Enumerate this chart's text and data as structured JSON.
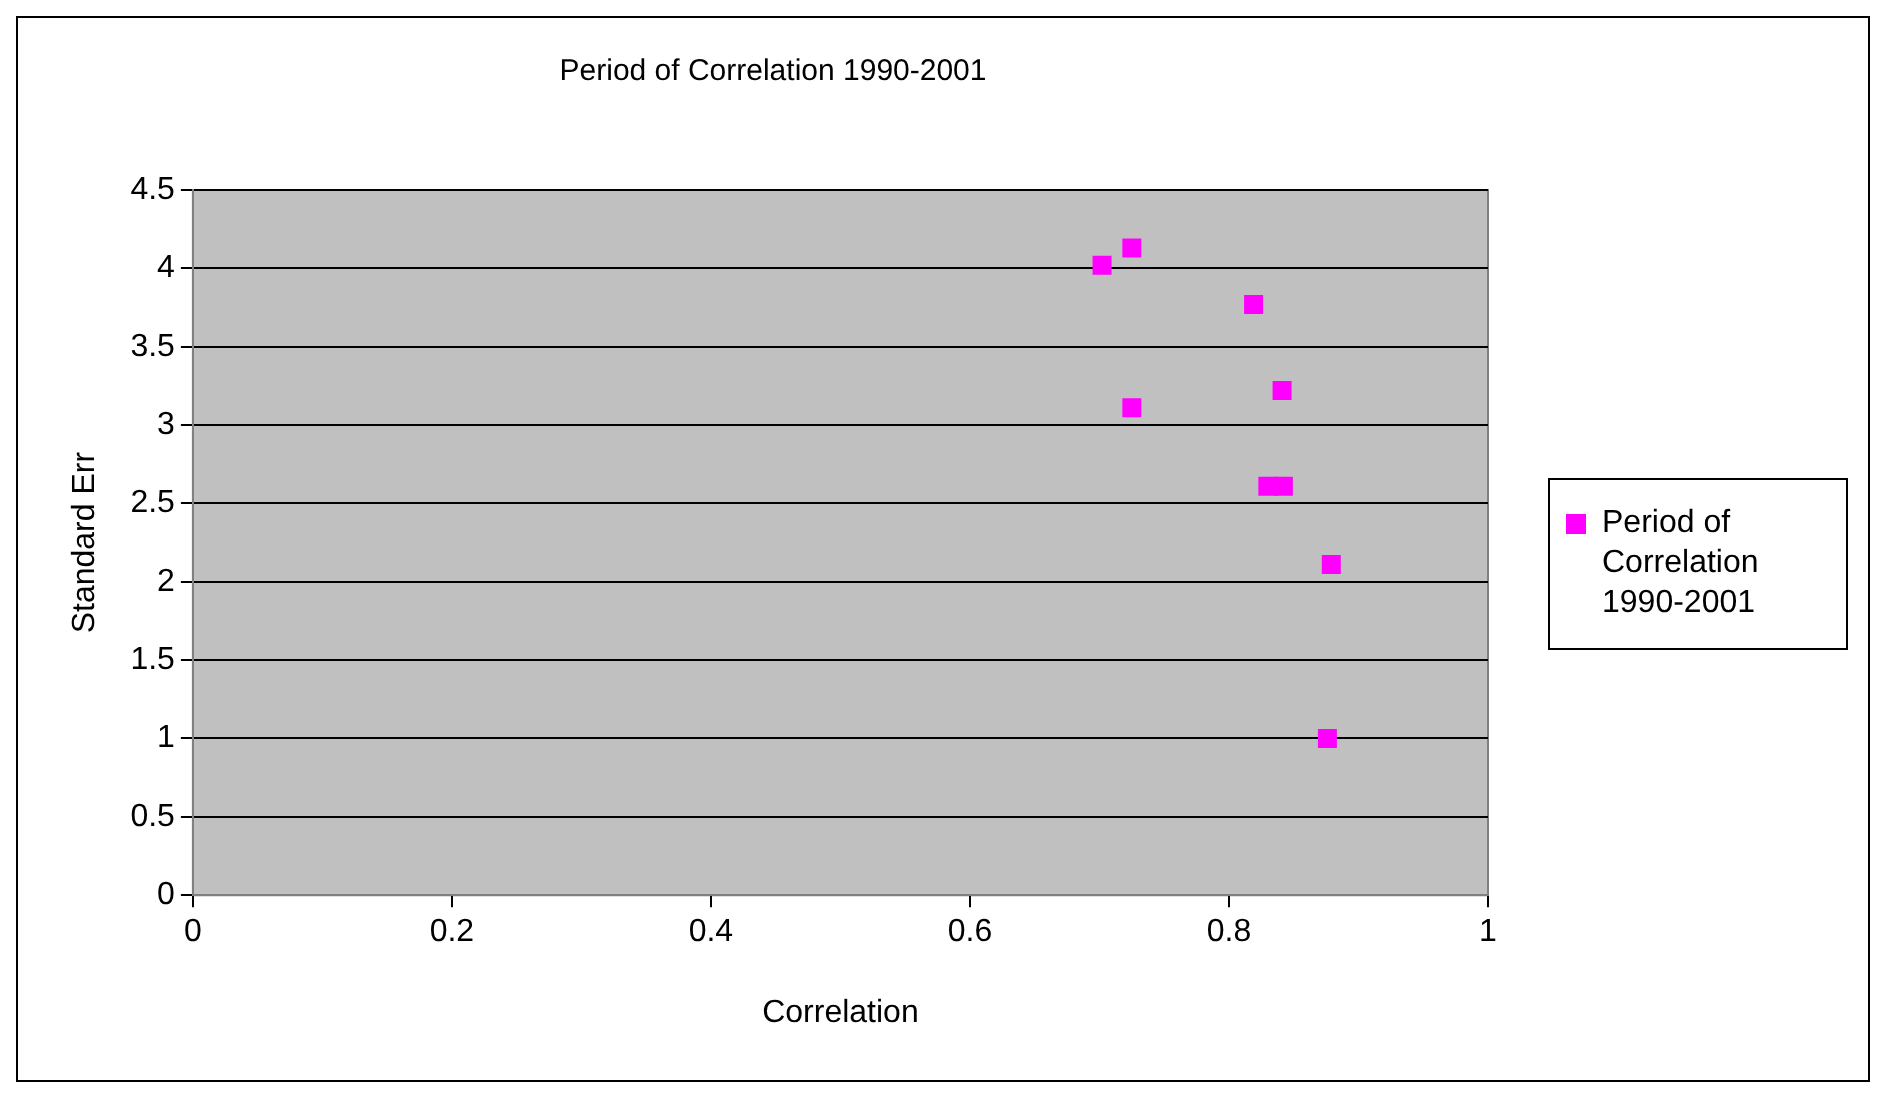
{
  "chart_data": {
    "type": "scatter",
    "title": "Period of Correlation 1990-2001",
    "xlabel": "Correlation",
    "ylabel": "Standard Err",
    "series": [
      {
        "name": "Period of Correlation 1990-2001",
        "color": "#ff00ff",
        "x": [
          0.702,
          0.725,
          0.819,
          0.841,
          0.725,
          0.83,
          0.842,
          0.879,
          0.876
        ],
        "values": [
          4.02,
          4.13,
          3.77,
          3.22,
          3.11,
          2.61,
          2.61,
          2.11,
          1.0
        ]
      }
    ],
    "xlim": [
      0,
      1
    ],
    "xticks": [
      0,
      0.2,
      0.4,
      0.6,
      0.8,
      1
    ],
    "ylim": [
      0,
      4.5
    ],
    "yticks": [
      0,
      0.5,
      1,
      1.5,
      2,
      2.5,
      3,
      3.5,
      4,
      4.5
    ],
    "grid": "y",
    "legend": "right",
    "marker": "square"
  }
}
